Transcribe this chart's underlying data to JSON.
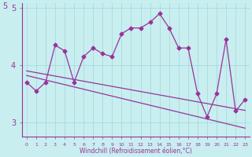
{
  "xlabel": "Windchill (Refroidissement éolien,°C)",
  "bg_color": "#c8eef0",
  "line_color": "#993399",
  "x_values": [
    0,
    1,
    2,
    3,
    4,
    5,
    6,
    7,
    8,
    9,
    10,
    11,
    12,
    13,
    14,
    15,
    16,
    17,
    18,
    19,
    20,
    21,
    22,
    23
  ],
  "y_main": [
    3.7,
    3.55,
    3.7,
    4.35,
    4.25,
    3.7,
    4.15,
    4.3,
    4.2,
    4.15,
    4.55,
    4.65,
    4.65,
    4.75,
    4.9,
    4.65,
    4.3,
    4.3,
    3.5,
    3.1,
    3.5,
    4.45,
    3.2,
    3.4
  ],
  "y_trend1": [
    3.82,
    3.78,
    3.74,
    3.7,
    3.66,
    3.62,
    3.58,
    3.54,
    3.5,
    3.46,
    3.42,
    3.38,
    3.34,
    3.3,
    3.26,
    3.22,
    3.18,
    3.14,
    3.1,
    3.06,
    3.02,
    2.98,
    2.94,
    2.9
  ],
  "y_trend2": [
    3.9,
    3.87,
    3.84,
    3.81,
    3.78,
    3.75,
    3.72,
    3.69,
    3.66,
    3.63,
    3.6,
    3.57,
    3.54,
    3.51,
    3.48,
    3.45,
    3.42,
    3.39,
    3.36,
    3.33,
    3.3,
    3.27,
    3.24,
    3.21
  ],
  "ylim_min": 2.75,
  "ylim_max": 5.1,
  "yticks": [
    3,
    4,
    5
  ],
  "ytick_top": 5,
  "grid_color": "#a0d8d8",
  "marker": "D",
  "marker_size": 2.5,
  "linewidth": 0.9
}
